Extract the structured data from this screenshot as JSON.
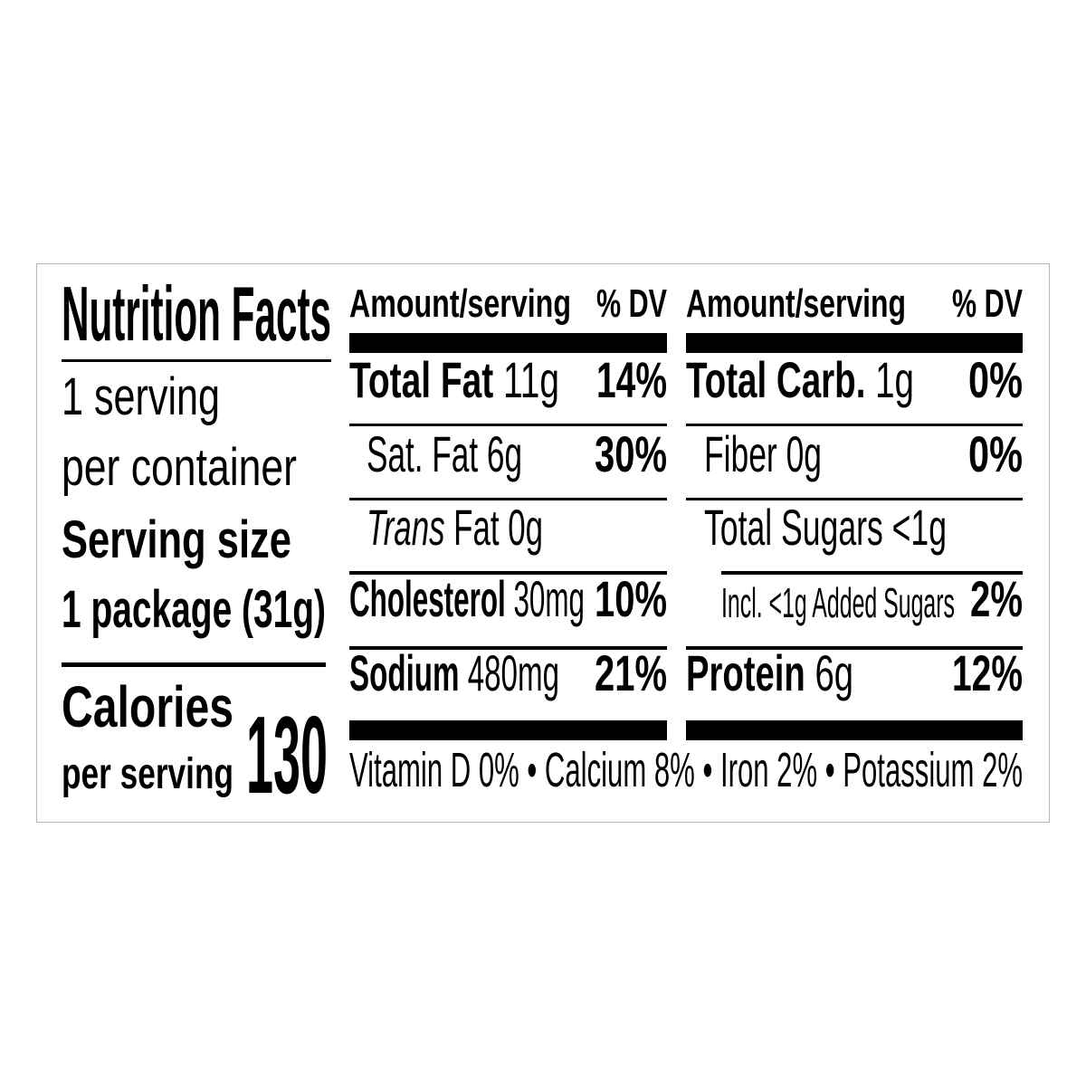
{
  "label": {
    "title": "Nutrition Facts",
    "servings_per_container": "1 serving",
    "servings_per_container_suffix": "per container",
    "serving_size_label": "Serving size",
    "serving_size_value": "1 package (31g)",
    "calories_label": "Calories",
    "calories_sublabel": "per serving",
    "calories_value": "130",
    "left_table": {
      "header_amount": "Amount/serving",
      "header_dv": "% DV",
      "rows": [
        {
          "name": "Total Fat",
          "amount": "11g",
          "dv": "14%"
        },
        {
          "name": "Sat. Fat",
          "amount": "6g",
          "dv": "30%"
        },
        {
          "name_italic": "Trans",
          "name": "Fat",
          "amount": "0g"
        },
        {
          "name": "Cholesterol",
          "amount": "30mg",
          "dv": "10%"
        },
        {
          "name": "Sodium",
          "amount": "480mg",
          "dv": "21%"
        }
      ]
    },
    "right_table": {
      "header_amount": "Amount/serving",
      "header_dv": "% DV",
      "rows": [
        {
          "name": "Total Carb.",
          "amount": "1g",
          "dv": "0%"
        },
        {
          "name": "Fiber",
          "amount": "0g",
          "dv": "0%"
        },
        {
          "name": "Total Sugars",
          "amount": "<1g"
        },
        {
          "name": "Incl. <1g Added Sugars",
          "dv": "2%"
        },
        {
          "name": "Protein",
          "amount": "6g",
          "dv": "12%"
        }
      ]
    },
    "micronutrients": "Vitamin D 0% • Calcium 8% • Iron 2% • Potassium 2%"
  }
}
